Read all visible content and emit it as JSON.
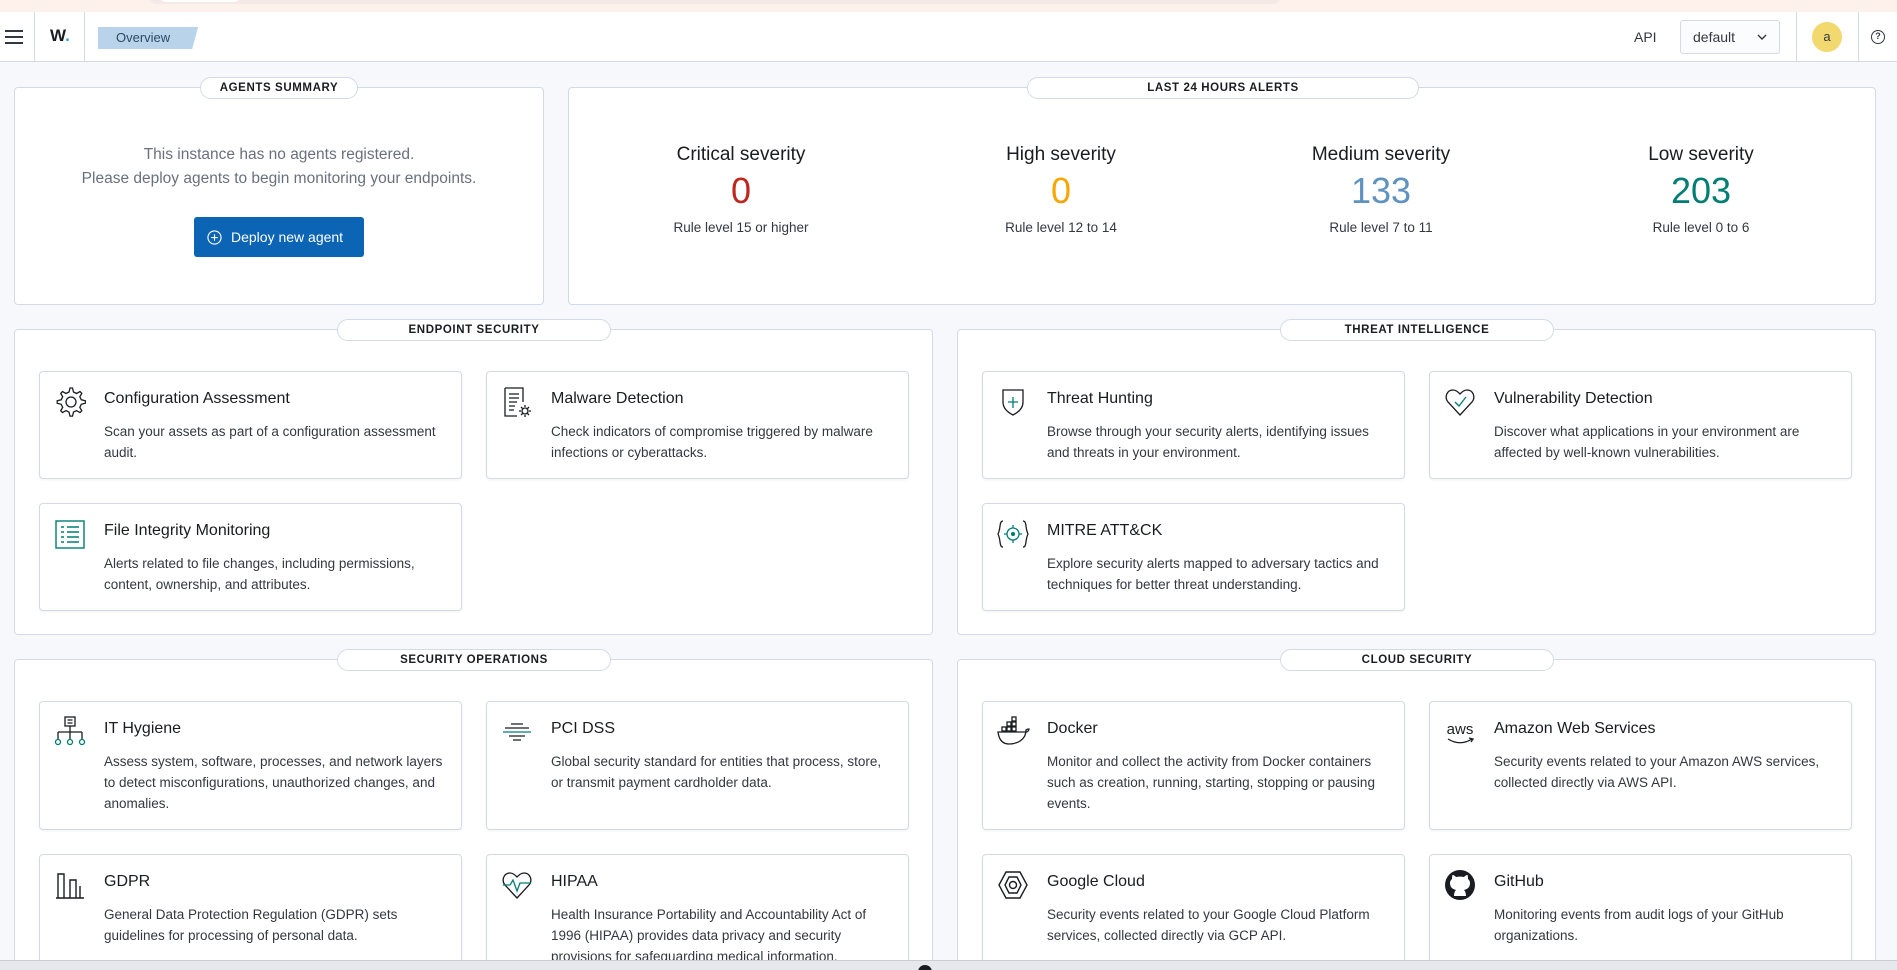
{
  "header": {
    "logo_text": "W",
    "logo_dot": ".",
    "breadcrumb": "Overview",
    "api_label": "API",
    "api_selected": "default",
    "avatar_initial": "a",
    "help_glyph": "?"
  },
  "agents_summary": {
    "title": "AGENTS SUMMARY",
    "line1": "This instance has no agents registered.",
    "line2": "Please deploy agents to begin monitoring your endpoints.",
    "deploy_label": "Deploy new agent"
  },
  "alerts": {
    "title": "LAST 24 HOURS ALERTS",
    "items": [
      {
        "name": "Critical severity",
        "value": "0",
        "desc": "Rule level 15 or higher",
        "color": "#bd271e"
      },
      {
        "name": "High severity",
        "value": "0",
        "desc": "Rule level 12 to 14",
        "color": "#f5a700"
      },
      {
        "name": "Medium severity",
        "value": "133",
        "desc": "Rule level 7 to 11",
        "color": "#6092c0"
      },
      {
        "name": "Low severity",
        "value": "203",
        "desc": "Rule level 0 to 6",
        "color": "#017d73"
      }
    ]
  },
  "sections": {
    "endpoint": {
      "title": "ENDPOINT SECURITY",
      "cards": [
        {
          "icon": "gear-icon",
          "title": "Configuration Assessment",
          "desc": "Scan your assets as part of a configuration assessment audit."
        },
        {
          "icon": "malware-report-icon",
          "title": "Malware Detection",
          "desc": "Check indicators of compromise triggered by malware infections or cyberattacks."
        },
        {
          "icon": "file-list-icon",
          "title": "File Integrity Monitoring",
          "desc": "Alerts related to file changes, including permissions, content, ownership, and attributes."
        }
      ]
    },
    "threat": {
      "title": "THREAT INTELLIGENCE",
      "cards": [
        {
          "icon": "shield-hunt-icon",
          "title": "Threat Hunting",
          "desc": "Browse through your security alerts, identifying issues and threats in your environment."
        },
        {
          "icon": "heart-check-icon",
          "title": "Vulnerability Detection",
          "desc": "Discover what applications in your environment are affected by well-known vulnerabilities."
        },
        {
          "icon": "target-icon",
          "title": "MITRE ATT&CK",
          "desc": "Explore security alerts mapped to adversary tactics and techniques for better threat understanding."
        }
      ]
    },
    "operations": {
      "title": "SECURITY OPERATIONS",
      "cards": [
        {
          "icon": "hierarchy-icon",
          "title": "IT Hygiene",
          "desc": "Assess system, software, processes, and network layers to detect misconfigurations, unauthorized changes, and anomalies."
        },
        {
          "icon": "lines-icon",
          "title": "PCI DSS",
          "desc": "Global security standard for entities that process, store, or transmit payment cardholder data."
        },
        {
          "icon": "building-icon",
          "title": "GDPR",
          "desc": "General Data Protection Regulation (GDPR) sets guidelines for processing of personal data."
        },
        {
          "icon": "heart-pulse-icon",
          "title": "HIPAA",
          "desc": "Health Insurance Portability and Accountability Act of 1996 (HIPAA) provides data privacy and security provisions for safeguarding medical information."
        }
      ]
    },
    "cloud": {
      "title": "CLOUD SECURITY",
      "cards": [
        {
          "icon": "docker-icon",
          "title": "Docker",
          "desc": "Monitor and collect the activity from Docker containers such as creation, running, starting, stopping or pausing events."
        },
        {
          "icon": "aws-icon",
          "title": "Amazon Web Services",
          "desc": "Security events related to your Amazon AWS services, collected directly via AWS API."
        },
        {
          "icon": "google-cloud-icon",
          "title": "Google Cloud",
          "desc": "Security events related to your Google Cloud Platform services, collected directly via GCP API."
        },
        {
          "icon": "github-icon",
          "title": "GitHub",
          "desc": "Monitoring events from audit logs of your GitHub organizations."
        }
      ]
    }
  },
  "icons": {
    "aws_text": "aws"
  }
}
